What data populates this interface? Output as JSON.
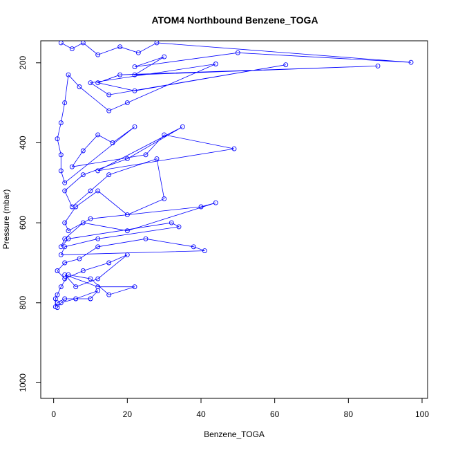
{
  "chart_data": {
    "type": "line",
    "title": "ATOM4 Northbound Benzene_TOGA",
    "xlabel": "Benzene_TOGA",
    "ylabel": "Pressure (mbar)",
    "xlim": [
      -3.5,
      101.5
    ],
    "ylim": [
      1039,
      145
    ],
    "y_reversed": true,
    "grid": false,
    "legend": "none",
    "x_ticks": [
      0,
      20,
      40,
      60,
      80,
      100
    ],
    "x_tick_labels": [
      "0",
      "20",
      "40",
      "60",
      "80",
      "100"
    ],
    "y_ticks": [
      200,
      400,
      600,
      800,
      1000
    ],
    "y_tick_labels": [
      "200",
      "400",
      "600",
      "800",
      "1000"
    ],
    "color": "#0000ff",
    "marker": "open-circle",
    "series": [
      {
        "x": [
          2,
          5,
          8,
          12,
          18,
          23,
          28,
          97,
          50,
          22,
          30,
          22,
          88,
          18,
          12,
          22,
          63,
          15,
          10,
          44,
          20,
          15,
          7,
          4,
          3,
          2,
          1,
          2,
          2,
          3,
          22,
          16,
          12,
          8,
          5,
          25,
          30,
          49,
          12,
          35,
          20,
          8,
          3,
          5,
          10,
          15,
          28,
          30,
          20,
          12,
          6,
          3,
          4,
          10,
          40,
          44,
          20,
          8,
          3,
          2,
          4,
          32,
          34,
          12,
          3,
          2,
          41,
          38,
          25,
          12,
          7,
          3,
          1,
          3,
          8,
          15,
          20,
          12,
          6,
          3,
          12,
          22,
          15,
          10,
          4,
          2,
          1,
          0.5,
          0.5,
          1,
          3,
          10,
          12,
          6,
          2,
          1
        ],
        "y": [
          150,
          165,
          150,
          180,
          160,
          175,
          150,
          199,
          175,
          210,
          185,
          230,
          208,
          230,
          250,
          270,
          205,
          280,
          250,
          203,
          300,
          320,
          260,
          230,
          300,
          350,
          390,
          430,
          470,
          500,
          360,
          400,
          380,
          420,
          460,
          430,
          380,
          415,
          470,
          360,
          440,
          480,
          520,
          560,
          520,
          480,
          440,
          540,
          580,
          520,
          560,
          600,
          620,
          590,
          560,
          550,
          620,
          600,
          640,
          660,
          640,
          600,
          610,
          640,
          660,
          680,
          670,
          660,
          640,
          660,
          690,
          700,
          720,
          740,
          720,
          700,
          680,
          740,
          760,
          730,
          760,
          760,
          780,
          740,
          730,
          760,
          780,
          790,
          810,
          800,
          790,
          790,
          770,
          790,
          800,
          812
        ]
      }
    ]
  }
}
